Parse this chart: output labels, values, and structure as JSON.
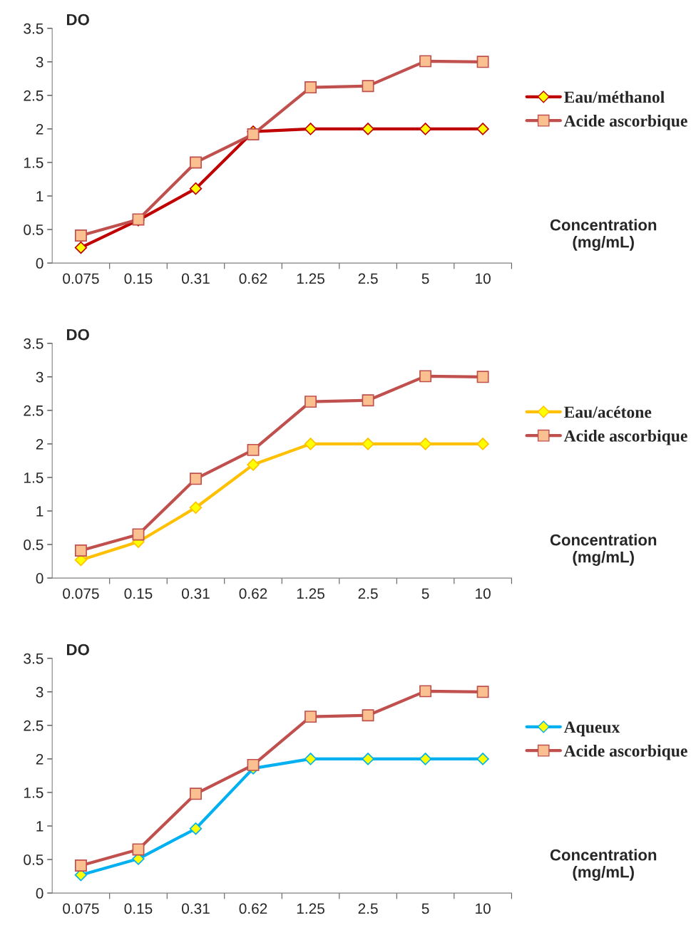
{
  "chart_data": [
    {
      "type": "line",
      "ylabel": "DO",
      "xlabel": "Concentration\n(mg/mL)",
      "categories": [
        "0.075",
        "0.15",
        "0.31",
        "0.62",
        "1.25",
        "2.5",
        "5",
        "10"
      ],
      "ylim": [
        0,
        3.5
      ],
      "yticks": [
        0,
        0.5,
        1,
        1.5,
        2,
        2.5,
        3,
        3.5
      ],
      "legend": "right",
      "grid": false,
      "series": [
        {
          "name": "Eau/méthanol",
          "color": "#c00000",
          "marker": "diamond",
          "values": [
            0.23,
            0.64,
            1.11,
            1.96,
            2.0,
            2.0,
            2.0,
            2.0
          ]
        },
        {
          "name": "Acide ascorbique",
          "color": "#c0504d",
          "marker": "square",
          "values": [
            0.41,
            0.65,
            1.5,
            1.92,
            2.62,
            2.64,
            3.01,
            3.0
          ]
        }
      ]
    },
    {
      "type": "line",
      "ylabel": "DO",
      "xlabel": "Concentration\n(mg/mL)",
      "categories": [
        "0.075",
        "0.15",
        "0.31",
        "0.62",
        "1.25",
        "2.5",
        "5",
        "10"
      ],
      "ylim": [
        0,
        3.5
      ],
      "yticks": [
        0,
        0.5,
        1,
        1.5,
        2,
        2.5,
        3,
        3.5
      ],
      "legend": "right",
      "grid": false,
      "series": [
        {
          "name": "Eau/acétone",
          "color": "#ffc000",
          "marker": "diamond",
          "values": [
            0.27,
            0.54,
            1.05,
            1.69,
            2.0,
            2.0,
            2.0,
            2.0
          ]
        },
        {
          "name": "Acide ascorbique",
          "color": "#c0504d",
          "marker": "square",
          "values": [
            0.41,
            0.65,
            1.48,
            1.91,
            2.63,
            2.65,
            3.01,
            3.0
          ]
        }
      ]
    },
    {
      "type": "line",
      "ylabel": "DO",
      "xlabel": "Concentration\n(mg/mL)",
      "categories": [
        "0.075",
        "0.15",
        "0.31",
        "0.62",
        "1.25",
        "2.5",
        "5",
        "10"
      ],
      "ylim": [
        0,
        3.5
      ],
      "yticks": [
        0,
        0.5,
        1,
        1.5,
        2,
        2.5,
        3,
        3.5
      ],
      "legend": "right",
      "grid": false,
      "series": [
        {
          "name": "Aqueux",
          "color": "#00b0f0",
          "marker": "diamond",
          "values": [
            0.27,
            0.51,
            0.96,
            1.86,
            2.0,
            2.0,
            2.0,
            2.0
          ]
        },
        {
          "name": "Acide ascorbique",
          "color": "#c0504d",
          "marker": "square",
          "values": [
            0.41,
            0.65,
            1.48,
            1.91,
            2.63,
            2.65,
            3.01,
            3.0
          ]
        }
      ]
    }
  ]
}
